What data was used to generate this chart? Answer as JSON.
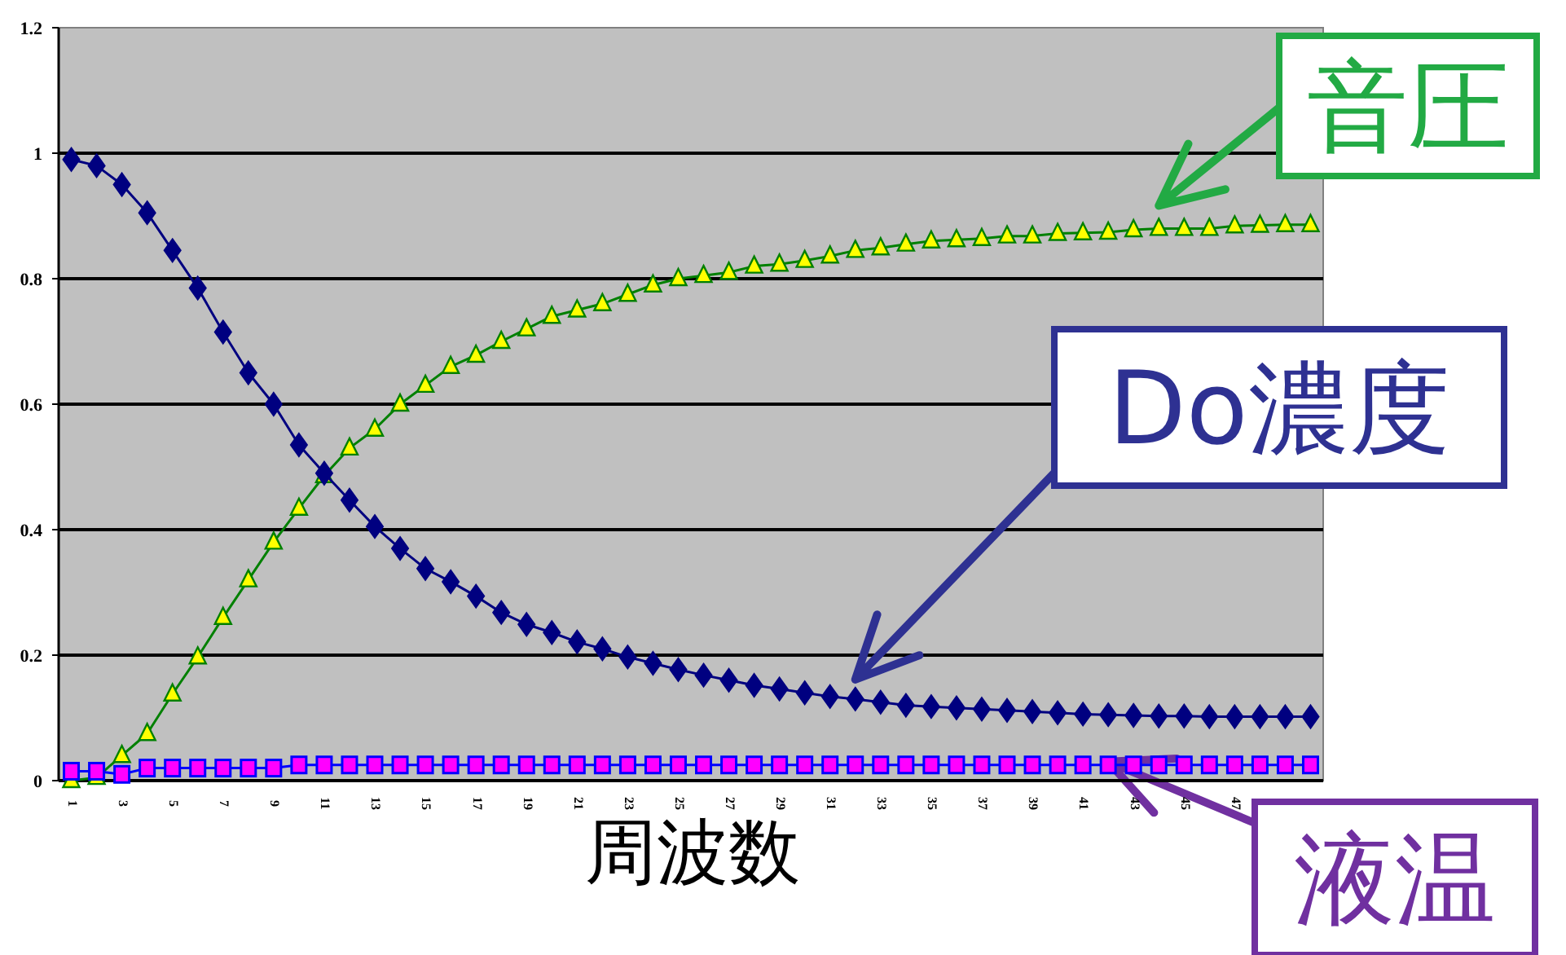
{
  "chart_data": {
    "type": "line",
    "xlabel": "周波数",
    "categories": [
      "1",
      null,
      "3",
      null,
      "5",
      null,
      "7",
      null,
      "9",
      null,
      "11",
      null,
      "13",
      null,
      "15",
      null,
      "17",
      null,
      "19",
      null,
      "21",
      null,
      "23",
      null,
      "25",
      null,
      "27",
      null,
      "29",
      null,
      "31",
      null,
      "33",
      null,
      "35",
      null,
      "37",
      null,
      "39",
      null,
      "41",
      null,
      "43",
      null,
      "45",
      null,
      "47",
      null,
      null,
      null
    ],
    "ylim": [
      0,
      1.2
    ],
    "yticks": [
      0,
      0.2,
      0.4,
      0.6,
      0.8,
      1,
      1.2
    ],
    "grid": "y",
    "series": [
      {
        "name": "音圧",
        "color": "#008000",
        "marker": "triangle",
        "values": [
          0.0,
          0.005,
          0.04,
          0.075,
          0.138,
          0.197,
          0.26,
          0.32,
          0.38,
          0.434,
          0.486,
          0.53,
          0.56,
          0.6,
          0.63,
          0.66,
          0.678,
          0.7,
          0.72,
          0.74,
          0.75,
          0.76,
          0.775,
          0.79,
          0.8,
          0.805,
          0.81,
          0.82,
          0.823,
          0.829,
          0.836,
          0.845,
          0.849,
          0.855,
          0.86,
          0.862,
          0.864,
          0.868,
          0.868,
          0.872,
          0.873,
          0.874,
          0.878,
          0.88,
          0.88,
          0.88,
          0.884,
          0.885,
          0.886,
          0.886
        ]
      },
      {
        "name": "Do濃度",
        "color": "#000080",
        "marker": "diamond",
        "values": [
          0.99,
          0.98,
          0.95,
          0.905,
          0.845,
          0.785,
          0.715,
          0.65,
          0.6,
          0.535,
          0.49,
          0.447,
          0.405,
          0.37,
          0.338,
          0.317,
          0.294,
          0.268,
          0.249,
          0.236,
          0.221,
          0.21,
          0.197,
          0.187,
          0.177,
          0.168,
          0.16,
          0.152,
          0.146,
          0.14,
          0.134,
          0.13,
          0.125,
          0.12,
          0.118,
          0.116,
          0.114,
          0.112,
          0.11,
          0.108,
          0.106,
          0.105,
          0.104,
          0.103,
          0.103,
          0.102,
          0.102,
          0.102,
          0.102,
          0.102
        ]
      },
      {
        "name": "液温",
        "color": "#ff00ff",
        "marker": "square",
        "values": [
          0.015,
          0.015,
          0.01,
          0.02,
          0.02,
          0.02,
          0.02,
          0.02,
          0.02,
          0.025,
          0.025,
          0.025,
          0.025,
          0.025,
          0.025,
          0.025,
          0.025,
          0.025,
          0.025,
          0.025,
          0.025,
          0.025,
          0.025,
          0.025,
          0.025,
          0.025,
          0.025,
          0.025,
          0.025,
          0.025,
          0.025,
          0.025,
          0.025,
          0.025,
          0.025,
          0.025,
          0.025,
          0.025,
          0.025,
          0.025,
          0.025,
          0.025,
          0.025,
          0.025,
          0.025,
          0.025,
          0.025,
          0.025,
          0.025,
          0.025
        ]
      }
    ]
  }
}
